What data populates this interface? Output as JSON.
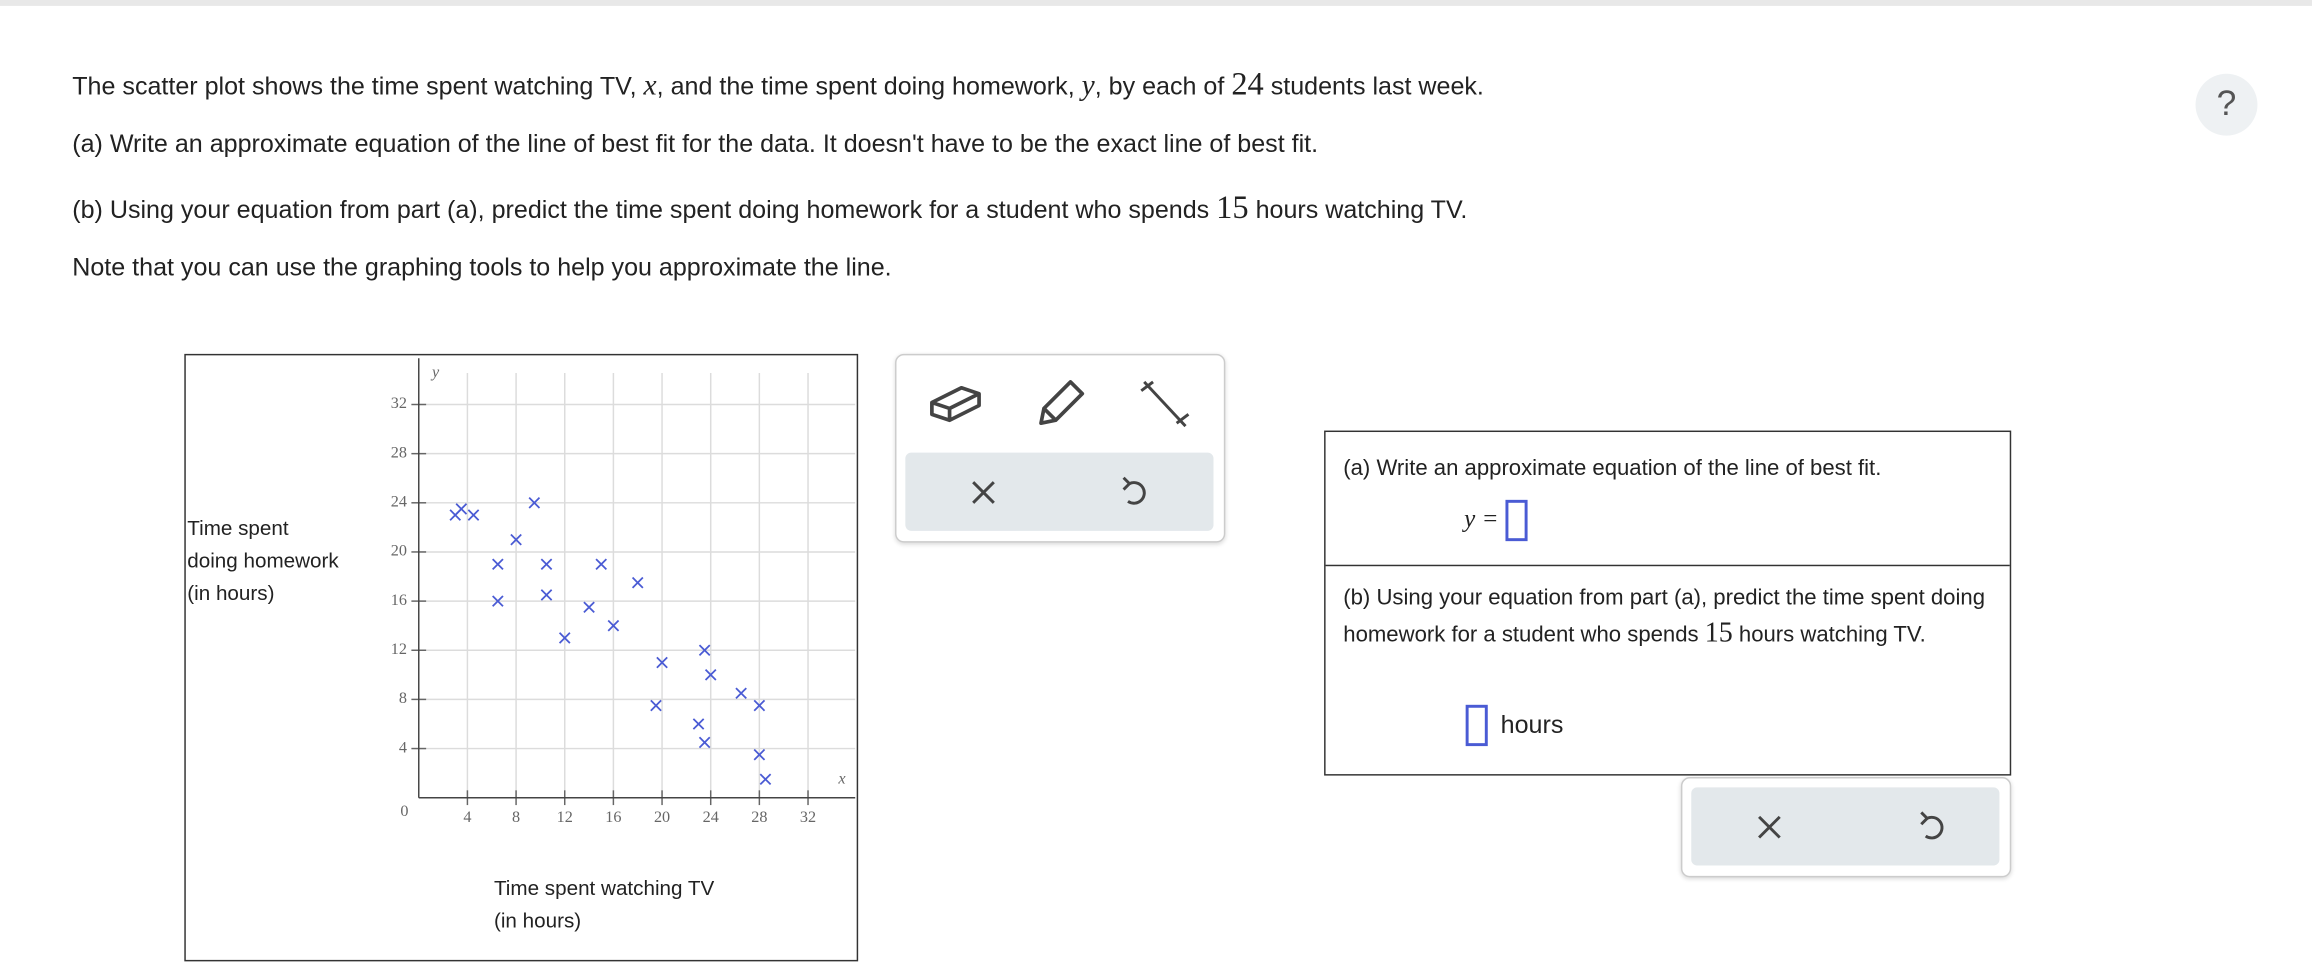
{
  "question": {
    "line1": [
      "The scatter plot shows the time spent watching TV, ",
      "x",
      ", and the time spent doing homework, ",
      "y",
      ", by each of ",
      "24",
      " students last week."
    ],
    "line2": "(a) Write an approximate equation of the line of best fit for the data. It doesn't have to be the exact line of best fit.",
    "line3": [
      "(b) Using your equation from part (a), predict the time spent doing homework for a student who spends ",
      "15",
      " hours watching TV."
    ],
    "line4": "Note that you can use the graphing tools to help you approximate the line."
  },
  "help": "?",
  "chart_data": {
    "type": "scatter",
    "x_label": [
      "Time spent watching TV",
      "(in hours)"
    ],
    "y_label": [
      "Time spent",
      "doing homework",
      "(in hours)"
    ],
    "x_axis_letter": "x",
    "y_axis_letter": "y",
    "origin_label": "0",
    "color": "#4a5bd4",
    "x": [
      3.5,
      3,
      4.5,
      9.5,
      8,
      6.5,
      10.5,
      15,
      6.5,
      10.5,
      14,
      18,
      12,
      16,
      20,
      23.5,
      24,
      26.5,
      28,
      19.5,
      23,
      23.5,
      28,
      28.5
    ],
    "values": [
      23.5,
      23,
      23,
      24,
      21,
      19,
      19,
      19,
      16,
      16.5,
      15.5,
      17.5,
      13,
      14,
      11,
      12,
      10,
      8.5,
      7.5,
      7.5,
      6,
      4.5,
      3.5,
      1.5
    ],
    "xlim": [
      0,
      36
    ],
    "ylim": [
      0,
      36
    ],
    "xticks": [
      4,
      8,
      12,
      16,
      20,
      24,
      28,
      32
    ],
    "yticks": [
      4,
      8,
      12,
      16,
      20,
      24,
      28,
      32
    ],
    "grid": true
  },
  "answer_panel": {
    "part_a": "(a) Write an approximate equation of the line of best fit.",
    "equation_lhs": "y =",
    "part_b": [
      "(b) Using your equation from part (a), predict the time spent doing homework for a student who spends ",
      "15",
      " hours watching TV."
    ],
    "unit": "hours"
  }
}
